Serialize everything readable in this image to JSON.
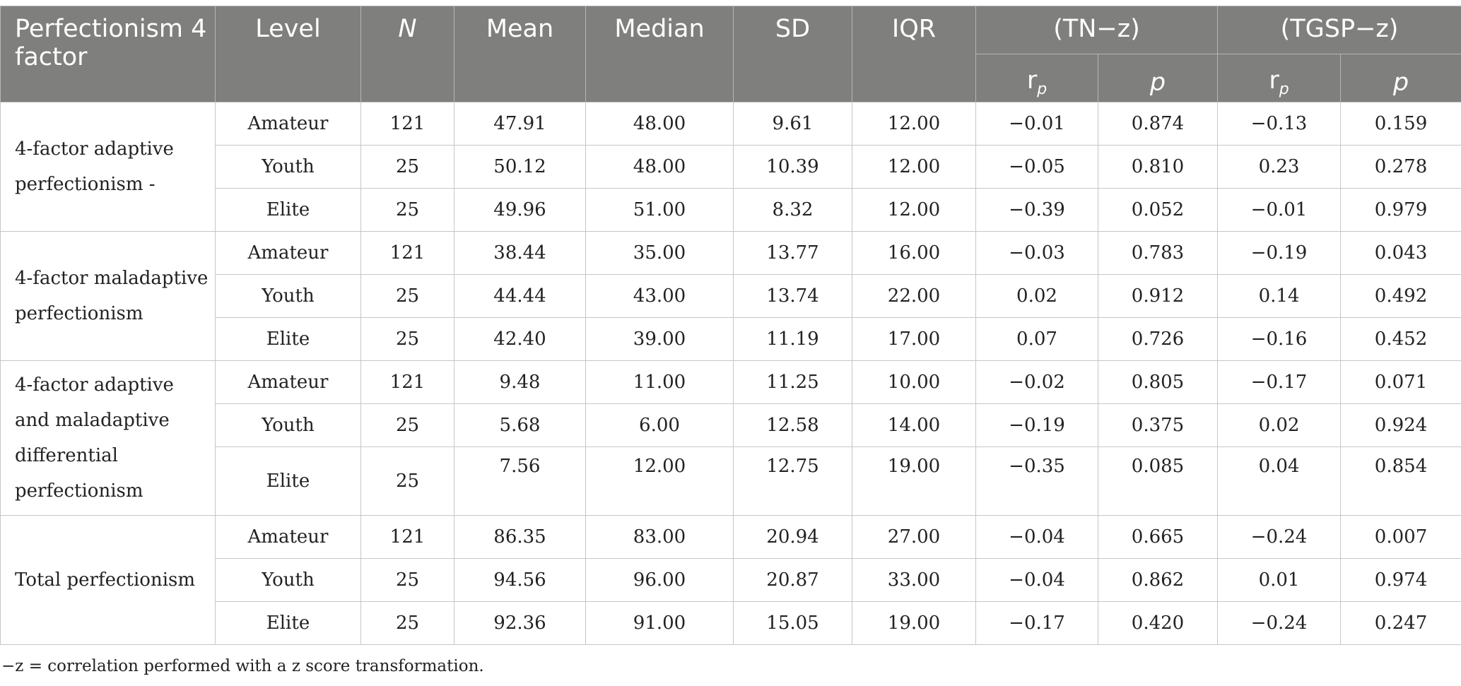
{
  "header": {
    "col_factor": "Perfectionism 4 factor",
    "col_level": "Level",
    "col_n": "N",
    "col_mean": "Mean",
    "col_median": "Median",
    "col_sd": "SD",
    "col_iqr": "IQR",
    "group_tn": "(TN−z)",
    "group_tgsp": "(TGSP−z)",
    "sub_r": "r",
    "sub_r_sub": "p",
    "sub_p": "p"
  },
  "groups": [
    {
      "label": "4-factor adaptive perfectionism -",
      "rows": [
        [
          "Amateur",
          "121",
          "47.91",
          "48.00",
          "9.61",
          "12.00",
          "−0.01",
          "0.874",
          "−0.13",
          "0.159"
        ],
        [
          "Youth",
          "25",
          "50.12",
          "48.00",
          "10.39",
          "12.00",
          "−0.05",
          "0.810",
          "0.23",
          "0.278"
        ],
        [
          "Elite",
          "25",
          "49.96",
          "51.00",
          "8.32",
          "12.00",
          "−0.39",
          "0.052",
          "−0.01",
          "0.979"
        ]
      ]
    },
    {
      "label": "4-factor maladaptive perfectionism",
      "rows": [
        [
          "Amateur",
          "121",
          "38.44",
          "35.00",
          "13.77",
          "16.00",
          "−0.03",
          "0.783",
          "−0.19",
          "0.043"
        ],
        [
          "Youth",
          "25",
          "44.44",
          "43.00",
          "13.74",
          "22.00",
          "0.02",
          "0.912",
          "0.14",
          "0.492"
        ],
        [
          "Elite",
          "25",
          "42.40",
          "39.00",
          "11.19",
          "17.00",
          "0.07",
          "0.726",
          "−0.16",
          "0.452"
        ]
      ]
    },
    {
      "label": "4-factor adaptive and maladaptive differential perfectionism",
      "rows": [
        [
          "Amateur",
          "121",
          "9.48",
          "11.00",
          "11.25",
          "10.00",
          "−0.02",
          "0.805",
          "−0.17",
          "0.071"
        ],
        [
          "Youth",
          "25",
          "5.68",
          "6.00",
          "12.58",
          "14.00",
          "−0.19",
          "0.375",
          "0.02",
          "0.924"
        ],
        [
          "Elite",
          "25",
          "7.56",
          "12.00",
          "12.75",
          "19.00",
          "−0.35",
          "0.085",
          "0.04",
          "0.854"
        ]
      ]
    },
    {
      "label": "Total perfectionism",
      "rows": [
        [
          "Amateur",
          "121",
          "86.35",
          "83.00",
          "20.94",
          "27.00",
          "−0.04",
          "0.665",
          "−0.24",
          "0.007"
        ],
        [
          "Youth",
          "25",
          "94.56",
          "96.00",
          "20.87",
          "33.00",
          "−0.04",
          "0.862",
          "0.01",
          "0.974"
        ],
        [
          "Elite",
          "25",
          "92.36",
          "91.00",
          "15.05",
          "19.00",
          "−0.17",
          "0.420",
          "−0.24",
          "0.247"
        ]
      ]
    }
  ],
  "footnote": "−z = correlation performed with a z score transformation."
}
